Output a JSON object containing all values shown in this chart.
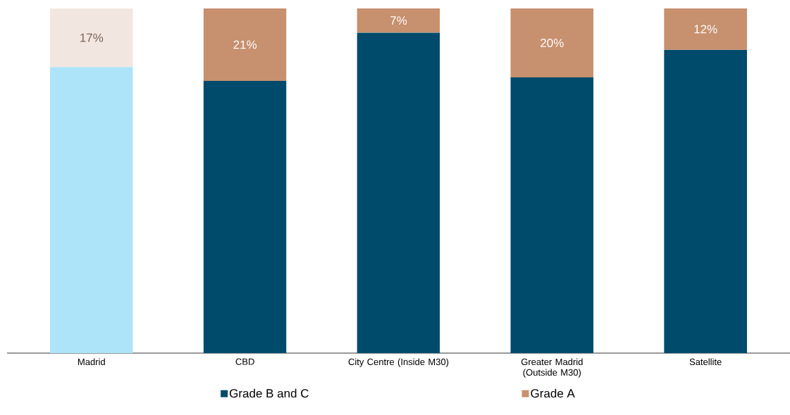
{
  "chart_data": {
    "type": "bar",
    "stacked": true,
    "tick_labels": "x",
    "ylim": [
      0,
      100
    ],
    "legend": "bottom",
    "categories": [
      "Madrid",
      "CBD",
      "City Centre (Inside M30)",
      "Greater Madrid (Outside M30)",
      "Satellite"
    ],
    "series": [
      {
        "name": "Grade B and C",
        "color": "#004b6b",
        "colors": [
          "#aee4fa",
          "#004b6b",
          "#004b6b",
          "#004b6b",
          "#004b6b"
        ],
        "values": [
          83,
          79,
          93,
          80,
          88
        ]
      },
      {
        "name": "Grade A",
        "color": "#c7906e",
        "colors": [
          "#f2e6e0",
          "#c7906e",
          "#c7906e",
          "#c7906e",
          "#c7906e"
        ],
        "values": [
          17,
          21,
          7,
          20,
          12
        ],
        "value_labels": [
          "17%",
          "21%",
          "7%",
          "20%",
          "12%"
        ]
      }
    ]
  }
}
